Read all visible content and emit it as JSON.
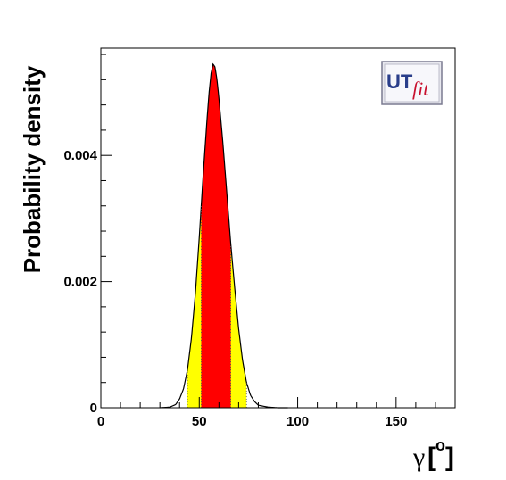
{
  "chart_data": {
    "type": "area",
    "title": "",
    "ylabel": "Probability density",
    "xlabel": {
      "symbol": "γ",
      "open": "[",
      "unit": "o",
      "close": "]"
    },
    "xlim": [
      0,
      180
    ],
    "ylim": [
      0,
      0.0057
    ],
    "x_ticks": [
      0,
      50,
      100,
      150
    ],
    "x_tick_labels": [
      "0",
      "50",
      "100",
      "150"
    ],
    "y_ticks": [
      0,
      0.002,
      0.004
    ],
    "y_tick_labels": [
      "0",
      "0.002",
      "0.004"
    ],
    "grid": false,
    "legend": "none",
    "distribution": {
      "x": [
        30,
        35,
        38,
        40,
        42,
        44,
        46,
        48,
        50,
        52,
        54,
        55,
        56,
        57,
        58,
        59,
        60,
        62,
        64,
        66,
        68,
        70,
        72,
        74,
        76,
        78,
        80,
        85,
        90,
        95
      ],
      "y": [
        0.0,
        1e-05,
        5e-05,
        0.00014,
        0.0003,
        0.0006,
        0.0011,
        0.0018,
        0.0027,
        0.0037,
        0.0046,
        0.005,
        0.0053,
        0.00545,
        0.0054,
        0.0052,
        0.0049,
        0.0042,
        0.0034,
        0.0026,
        0.0019,
        0.00125,
        0.00075,
        0.0004,
        0.0002,
        0.0001,
        4e-05,
        1e-05,
        0.0,
        0.0
      ]
    },
    "interval_68": [
      51,
      66
    ],
    "interval_95": [
      44,
      74
    ],
    "colors": {
      "central_68": "#ff0000",
      "outer_95": "#ffff00",
      "curve": "#000000"
    }
  },
  "logo": {
    "ut": "UT",
    "fit": "fit"
  }
}
